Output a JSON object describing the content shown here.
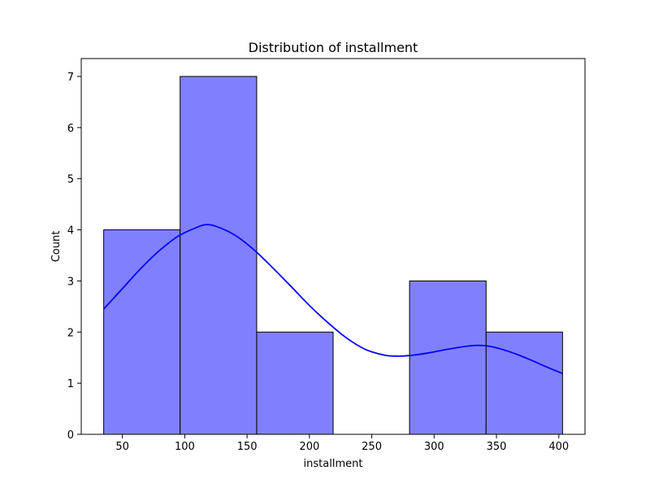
{
  "chart_data": {
    "type": "bar",
    "title": "Distribution of installment",
    "xlabel": "installment",
    "ylabel": "Count",
    "bins": [
      {
        "start": 35,
        "end": 96.3,
        "count": 4
      },
      {
        "start": 96.3,
        "end": 157.7,
        "count": 7
      },
      {
        "start": 157.7,
        "end": 219,
        "count": 2
      },
      {
        "start": 219,
        "end": 280.3,
        "count": 0
      },
      {
        "start": 280.3,
        "end": 341.7,
        "count": 3
      },
      {
        "start": 341.7,
        "end": 403,
        "count": 2
      }
    ],
    "kde": {
      "x": [
        35,
        50,
        65,
        80,
        95,
        110,
        117,
        125,
        140,
        155,
        170,
        185,
        200,
        215,
        230,
        245,
        260,
        270,
        280,
        295,
        310,
        325,
        335,
        345,
        360,
        375,
        390,
        403
      ],
      "y": [
        2.45,
        2.85,
        3.25,
        3.6,
        3.88,
        4.05,
        4.1,
        4.07,
        3.9,
        3.62,
        3.27,
        2.9,
        2.52,
        2.18,
        1.88,
        1.66,
        1.55,
        1.53,
        1.54,
        1.59,
        1.66,
        1.72,
        1.74,
        1.72,
        1.62,
        1.48,
        1.32,
        1.19
      ]
    },
    "xlim": [
      17,
      421
    ],
    "ylim": [
      0,
      7.35
    ],
    "xticks": [
      "50",
      "100",
      "150",
      "200",
      "250",
      "300",
      "350",
      "400"
    ],
    "yticks": [
      "0",
      "1",
      "2",
      "3",
      "4",
      "5",
      "6",
      "7"
    ],
    "colors": {
      "bar_fill": "#8080ff",
      "bar_edge": "#000000",
      "kde_line": "#0000ff"
    },
    "grid": false,
    "legend": "none"
  }
}
